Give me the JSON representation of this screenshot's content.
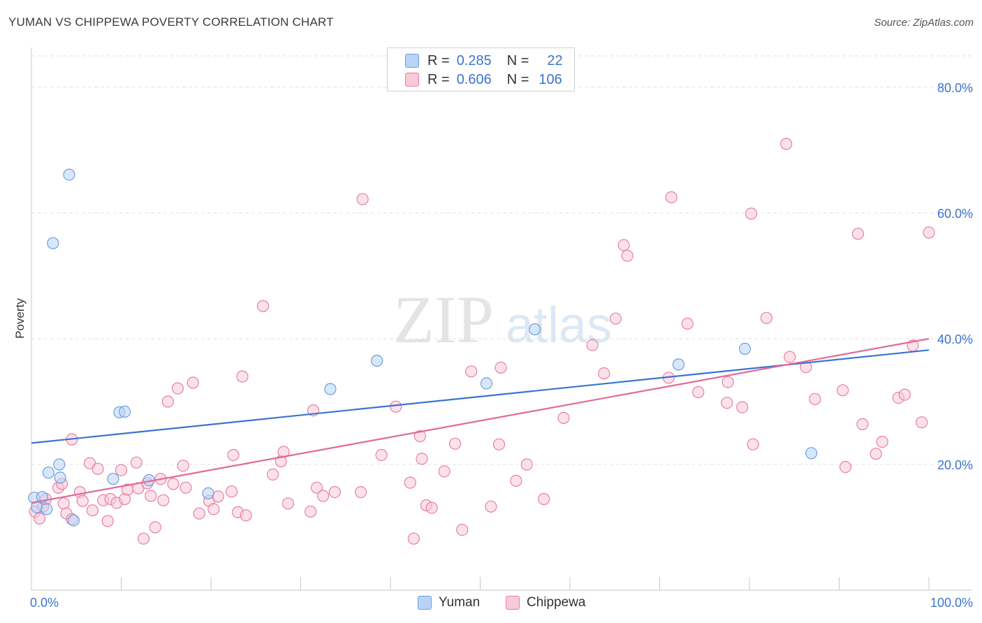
{
  "title": "YUMAN VS CHIPPEWA POVERTY CORRELATION CHART",
  "source": "Source: ZipAtlas.com",
  "watermark": {
    "zip": "ZIP",
    "atlas": "atlas"
  },
  "legend": {
    "rows": [
      {
        "r_label": "R =",
        "r_value": "0.285",
        "n_label": "N =",
        "n_value": "22",
        "color": "#6a9fe0",
        "fill": "#b9d3f5"
      },
      {
        "r_label": "R =",
        "r_value": "0.606",
        "n_label": "N =",
        "n_value": "106",
        "color": "#e87fa4",
        "fill": "#f8c9d8"
      }
    ]
  },
  "bottom_legend": [
    {
      "label": "Yuman",
      "color": "#6a9fe0",
      "fill": "#b9d3f5"
    },
    {
      "label": "Chippewa",
      "color": "#e87fa4",
      "fill": "#f8c9d8"
    }
  ],
  "chart_data": {
    "type": "scatter",
    "title": "YUMAN VS CHIPPEWA POVERTY CORRELATION CHART",
    "xlabel": "",
    "ylabel": "Poverty",
    "xlim": [
      0,
      100
    ],
    "ylim": [
      0,
      85
    ],
    "x_tick_labels": [
      "0.0%",
      "100.0%"
    ],
    "y_tick_labels": [
      "20.0%",
      "40.0%",
      "60.0%",
      "80.0%"
    ],
    "y_ticks": [
      20,
      40,
      60,
      80
    ],
    "grid": true,
    "series": [
      {
        "name": "Yuman",
        "color": "#3b74d0",
        "point_color": "#6a9fe0",
        "point_fill": "#b9d3f5",
        "trend": {
          "x": [
            0,
            100
          ],
          "y": [
            23.4,
            38.2
          ]
        },
        "points": [
          [
            4.2,
            66.1
          ],
          [
            2.4,
            55.2
          ],
          [
            0.3,
            14.7
          ],
          [
            0.6,
            13.2
          ],
          [
            1.2,
            14.8
          ],
          [
            1.7,
            12.9
          ],
          [
            1.9,
            18.7
          ],
          [
            3.1,
            20.0
          ],
          [
            3.2,
            17.9
          ],
          [
            4.7,
            11.1
          ],
          [
            9.1,
            17.7
          ],
          [
            9.8,
            28.3
          ],
          [
            10.4,
            28.4
          ],
          [
            13.1,
            17.5
          ],
          [
            19.7,
            15.4
          ],
          [
            33.3,
            32.0
          ],
          [
            38.5,
            36.5
          ],
          [
            50.7,
            32.9
          ],
          [
            56.1,
            41.5
          ],
          [
            72.1,
            35.9
          ],
          [
            79.5,
            38.4
          ],
          [
            86.9,
            21.8
          ]
        ]
      },
      {
        "name": "Chippewa",
        "color": "#e06a97",
        "point_color": "#e87fa4",
        "point_fill": "#f8c9d8",
        "trend": {
          "x": [
            0,
            100
          ],
          "y": [
            13.9,
            40.0
          ]
        },
        "points": [
          [
            0.4,
            12.5
          ],
          [
            0.9,
            11.4
          ],
          [
            1.3,
            13.3
          ],
          [
            1.6,
            14.5
          ],
          [
            3.0,
            16.3
          ],
          [
            3.4,
            16.9
          ],
          [
            3.6,
            13.8
          ],
          [
            3.9,
            12.2
          ],
          [
            4.5,
            11.3
          ],
          [
            4.5,
            24.0
          ],
          [
            5.4,
            15.6
          ],
          [
            5.7,
            14.2
          ],
          [
            6.5,
            20.2
          ],
          [
            6.8,
            12.7
          ],
          [
            7.4,
            19.3
          ],
          [
            8.0,
            14.3
          ],
          [
            8.5,
            11.0
          ],
          [
            8.8,
            14.5
          ],
          [
            9.5,
            13.9
          ],
          [
            10.0,
            19.1
          ],
          [
            10.4,
            14.5
          ],
          [
            10.7,
            16.0
          ],
          [
            11.7,
            20.3
          ],
          [
            11.9,
            16.2
          ],
          [
            12.5,
            8.2
          ],
          [
            12.9,
            17.0
          ],
          [
            13.3,
            15.0
          ],
          [
            13.8,
            10.0
          ],
          [
            14.4,
            17.7
          ],
          [
            14.7,
            14.3
          ],
          [
            15.2,
            30.0
          ],
          [
            15.8,
            16.9
          ],
          [
            16.3,
            32.1
          ],
          [
            16.9,
            19.8
          ],
          [
            17.2,
            16.3
          ],
          [
            18.0,
            33.0
          ],
          [
            18.7,
            12.2
          ],
          [
            19.8,
            14.2
          ],
          [
            20.3,
            12.9
          ],
          [
            20.8,
            14.9
          ],
          [
            22.3,
            15.7
          ],
          [
            22.5,
            21.5
          ],
          [
            23.0,
            12.4
          ],
          [
            23.5,
            34.0
          ],
          [
            23.9,
            11.9
          ],
          [
            25.8,
            45.2
          ],
          [
            26.9,
            18.4
          ],
          [
            27.8,
            20.5
          ],
          [
            28.1,
            22.0
          ],
          [
            28.6,
            13.8
          ],
          [
            31.1,
            12.5
          ],
          [
            31.4,
            28.6
          ],
          [
            31.8,
            16.3
          ],
          [
            32.5,
            15.0
          ],
          [
            33.8,
            15.6
          ],
          [
            36.7,
            15.6
          ],
          [
            36.9,
            62.2
          ],
          [
            39.0,
            21.5
          ],
          [
            40.6,
            29.2
          ],
          [
            42.2,
            17.1
          ],
          [
            42.6,
            8.2
          ],
          [
            43.3,
            24.5
          ],
          [
            43.5,
            20.9
          ],
          [
            44.0,
            13.5
          ],
          [
            44.6,
            13.1
          ],
          [
            46.0,
            18.9
          ],
          [
            47.2,
            23.3
          ],
          [
            48.0,
            9.6
          ],
          [
            49.0,
            34.8
          ],
          [
            51.2,
            13.3
          ],
          [
            52.1,
            23.2
          ],
          [
            52.3,
            35.4
          ],
          [
            54.0,
            17.4
          ],
          [
            55.2,
            20.0
          ],
          [
            57.1,
            14.5
          ],
          [
            59.3,
            27.4
          ],
          [
            62.5,
            39.0
          ],
          [
            63.8,
            34.5
          ],
          [
            65.1,
            43.2
          ],
          [
            66.0,
            54.9
          ],
          [
            66.4,
            53.2
          ],
          [
            71.0,
            33.8
          ],
          [
            71.3,
            62.5
          ],
          [
            73.1,
            42.4
          ],
          [
            74.3,
            31.5
          ],
          [
            77.5,
            29.8
          ],
          [
            77.6,
            33.1
          ],
          [
            79.2,
            29.1
          ],
          [
            80.2,
            59.9
          ],
          [
            80.4,
            23.2
          ],
          [
            81.9,
            43.3
          ],
          [
            84.1,
            71.0
          ],
          [
            84.5,
            37.1
          ],
          [
            86.3,
            35.5
          ],
          [
            87.3,
            30.4
          ],
          [
            90.4,
            31.8
          ],
          [
            90.7,
            19.6
          ],
          [
            92.1,
            56.7
          ],
          [
            92.6,
            26.4
          ],
          [
            94.1,
            21.7
          ],
          [
            94.8,
            23.6
          ],
          [
            96.6,
            30.6
          ],
          [
            97.3,
            31.1
          ],
          [
            98.2,
            38.9
          ],
          [
            99.2,
            26.7
          ],
          [
            100.0,
            56.9
          ]
        ]
      }
    ]
  }
}
